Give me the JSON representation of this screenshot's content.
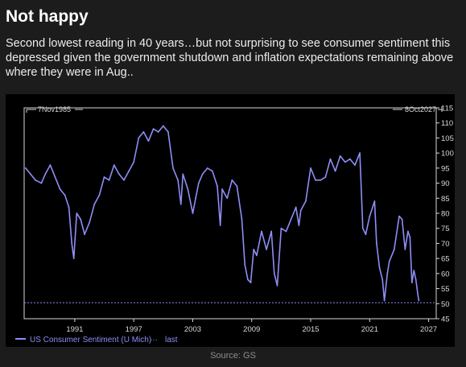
{
  "header": {
    "title": "Not happy",
    "subtitle": "Second lowest reading in 40 years…but not surprising to see consumer sentiment this depressed given the government shutdown and inflation expectations remaining above where they were in Aug.."
  },
  "footer": {
    "source": "Source: GS"
  },
  "colors": {
    "series": "#8e8ef7",
    "background": "#000000",
    "page": "#1c1c1c",
    "axis": "#d9d9d9"
  },
  "chart_data": {
    "type": "line",
    "start_label": "7Nov1985",
    "end_label": "8Oct2027",
    "xlim": [
      1985.85,
      2027.77
    ],
    "ylim": [
      45,
      115
    ],
    "x_ticks": [
      "1991",
      "1997",
      "2003",
      "2009",
      "2015",
      "2021",
      "2027"
    ],
    "y_ticks": [
      "45",
      "50",
      "55",
      "60",
      "65",
      "70",
      "75",
      "80",
      "85",
      "90",
      "95",
      "100",
      "105",
      "110",
      "115"
    ],
    "last_value": 50.3,
    "legend": {
      "series_label": "US Consumer Sentiment (U Mich)",
      "last_label": "last"
    },
    "series": [
      {
        "name": "US Consumer Sentiment (U Mich)",
        "x": [
          1986.0,
          1986.5,
          1987.0,
          1987.6,
          1988.0,
          1988.5,
          1989.0,
          1989.5,
          1990.0,
          1990.4,
          1990.7,
          1990.9,
          1991.2,
          1991.6,
          1992.0,
          1992.5,
          1993.0,
          1993.5,
          1994.0,
          1994.5,
          1995.0,
          1995.5,
          1996.0,
          1996.5,
          1997.0,
          1997.5,
          1998.0,
          1998.5,
          1999.0,
          1999.5,
          2000.0,
          2000.5,
          2001.0,
          2001.5,
          2001.8,
          2002.0,
          2002.5,
          2003.0,
          2003.3,
          2003.6,
          2004.0,
          2004.5,
          2005.0,
          2005.5,
          2005.8,
          2006.0,
          2006.5,
          2007.0,
          2007.5,
          2008.0,
          2008.3,
          2008.6,
          2008.9,
          2009.2,
          2009.5,
          2010.0,
          2010.5,
          2011.0,
          2011.3,
          2011.6,
          2012.0,
          2012.5,
          2013.0,
          2013.5,
          2013.8,
          2014.0,
          2014.5,
          2015.0,
          2015.5,
          2016.0,
          2016.5,
          2017.0,
          2017.5,
          2018.0,
          2018.5,
          2019.0,
          2019.5,
          2020.0,
          2020.3,
          2020.6,
          2021.0,
          2021.5,
          2021.7,
          2022.0,
          2022.3,
          2022.5,
          2022.8,
          2023.0,
          2023.5,
          2024.0,
          2024.3,
          2024.6,
          2024.9,
          2025.1,
          2025.3,
          2025.5,
          2025.7,
          2025.9,
          2026.0
        ],
        "values": [
          95,
          93,
          91,
          90,
          93,
          96,
          92,
          88,
          86,
          82,
          70,
          65,
          80,
          78,
          73,
          77,
          83,
          86,
          92,
          91,
          96,
          93,
          91,
          94,
          97,
          105,
          107,
          104,
          108,
          107,
          109,
          107,
          95,
          91,
          83,
          93,
          88,
          80,
          85,
          90,
          93,
          95,
          94,
          89,
          76,
          88,
          85,
          91,
          89,
          78,
          63,
          58,
          57,
          68,
          66,
          74,
          68,
          74,
          60,
          56,
          75,
          74,
          78,
          82,
          76,
          81,
          84,
          95,
          91,
          91,
          92,
          98,
          94,
          99,
          97,
          98,
          96,
          100,
          75,
          73,
          79,
          84,
          70,
          62,
          58,
          51,
          60,
          64,
          68,
          79,
          78,
          68,
          74,
          72,
          57,
          61,
          58,
          53,
          51
        ]
      }
    ]
  }
}
